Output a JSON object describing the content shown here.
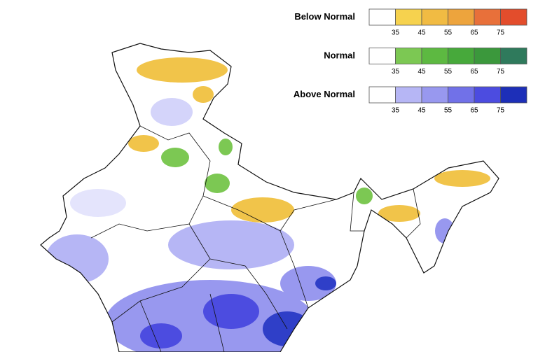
{
  "legend": {
    "groups": [
      {
        "title": "Below Normal",
        "ticks": [
          35,
          45,
          55,
          65,
          75
        ],
        "colors": [
          "#ffffff",
          "#f6d24e",
          "#f1bb43",
          "#eda43d",
          "#e8703a",
          "#e34d2c"
        ]
      },
      {
        "title": "Normal",
        "ticks": [
          35,
          45,
          55,
          65,
          75
        ],
        "colors": [
          "#ffffff",
          "#7cc853",
          "#5db941",
          "#47a93b",
          "#3b983c",
          "#2f7a5c"
        ]
      },
      {
        "title": "Above Normal",
        "ticks": [
          35,
          45,
          55,
          65,
          75
        ],
        "colors": [
          "#ffffff",
          "#b6b6f5",
          "#9898ef",
          "#7171e8",
          "#4c4ce0",
          "#1d2fb8"
        ]
      }
    ]
  }
}
